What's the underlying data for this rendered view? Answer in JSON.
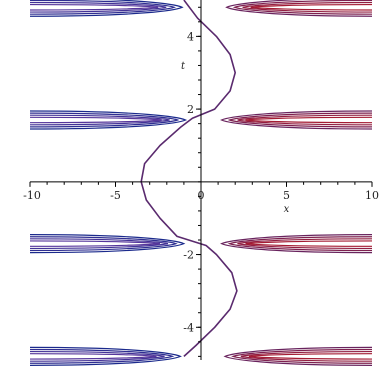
{
  "chart_data": {
    "type": "contour",
    "title": "",
    "xlabel": "x",
    "ylabel": "t",
    "xlim": [
      -10,
      10
    ],
    "ylim": [
      -4.9,
      5
    ],
    "x_ticks": [
      -10,
      -5,
      0,
      5,
      10
    ],
    "y_ticks": [
      -4,
      -2,
      2,
      4
    ],
    "x_tick_labels": [
      "-10",
      "-5",
      "0",
      "5",
      "10"
    ],
    "y_tick_labels": [
      "-4",
      "-2",
      "2",
      "4"
    ],
    "colors": {
      "low": "#1b2a8c",
      "high": "#b01a2a",
      "curve": "#5a2a6e"
    },
    "bands": [
      {
        "t": 4.8,
        "x_left_tip": -1.1,
        "x_right_tip": 1.5,
        "levels": 4
      },
      {
        "t": 1.7,
        "x_left_tip": -0.9,
        "x_right_tip": 1.2,
        "levels": 4
      },
      {
        "t": -1.7,
        "x_left_tip": -1.0,
        "x_right_tip": 1.2,
        "levels": 4
      },
      {
        "t": -4.8,
        "x_left_tip": -1.2,
        "x_right_tip": 1.4,
        "levels": 4
      }
    ],
    "central_curve": {
      "t": [
        5.0,
        4.5,
        4.0,
        3.5,
        3.0,
        2.5,
        2.0,
        1.75,
        1.5,
        1.0,
        0.5,
        0.0,
        -0.5,
        -1.0,
        -1.5,
        -1.75,
        -2.0,
        -2.5,
        -3.0,
        -3.5,
        -4.0,
        -4.5,
        -4.8
      ],
      "x": [
        -1.0,
        -0.2,
        0.9,
        1.7,
        2.0,
        1.7,
        0.8,
        -0.5,
        -1.2,
        -2.4,
        -3.3,
        -3.5,
        -3.2,
        -2.4,
        -1.4,
        0.3,
        0.9,
        1.8,
        2.1,
        1.7,
        0.8,
        -0.3,
        -1.0
      ]
    }
  }
}
